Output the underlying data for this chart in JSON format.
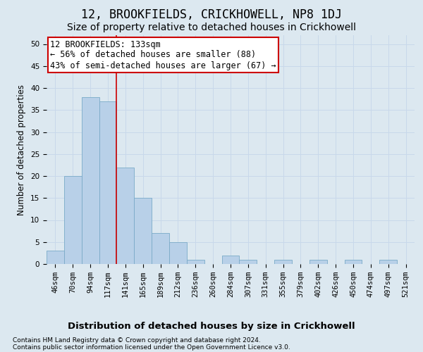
{
  "title": "12, BROOKFIELDS, CRICKHOWELL, NP8 1DJ",
  "subtitle": "Size of property relative to detached houses in Crickhowell",
  "xlabel": "Distribution of detached houses by size in Crickhowell",
  "ylabel": "Number of detached properties",
  "bar_labels": [
    "46sqm",
    "70sqm",
    "94sqm",
    "117sqm",
    "141sqm",
    "165sqm",
    "189sqm",
    "212sqm",
    "236sqm",
    "260sqm",
    "284sqm",
    "307sqm",
    "331sqm",
    "355sqm",
    "379sqm",
    "402sqm",
    "426sqm",
    "450sqm",
    "474sqm",
    "497sqm",
    "521sqm"
  ],
  "bar_values": [
    3,
    20,
    38,
    37,
    22,
    15,
    7,
    5,
    1,
    0,
    2,
    1,
    0,
    1,
    0,
    1,
    0,
    1,
    0,
    1,
    0
  ],
  "bar_color": "#b8d0e8",
  "bar_edge_color": "#7aaac8",
  "property_line_color": "#cc0000",
  "annotation_text": "12 BROOKFIELDS: 133sqm\n← 56% of detached houses are smaller (88)\n43% of semi-detached houses are larger (67) →",
  "annotation_box_color": "#ffffff",
  "annotation_box_edge": "#cc0000",
  "ylim": [
    0,
    52
  ],
  "yticks": [
    0,
    5,
    10,
    15,
    20,
    25,
    30,
    35,
    40,
    45,
    50
  ],
  "grid_color": "#c8d8ea",
  "background_color": "#dce8f0",
  "footer_line1": "Contains HM Land Registry data © Crown copyright and database right 2024.",
  "footer_line2": "Contains public sector information licensed under the Open Government Licence v3.0.",
  "title_fontsize": 12,
  "subtitle_fontsize": 10,
  "xlabel_fontsize": 9.5,
  "ylabel_fontsize": 8.5,
  "tick_fontsize": 7.5,
  "footer_fontsize": 6.5,
  "annotation_fontsize": 8.5
}
